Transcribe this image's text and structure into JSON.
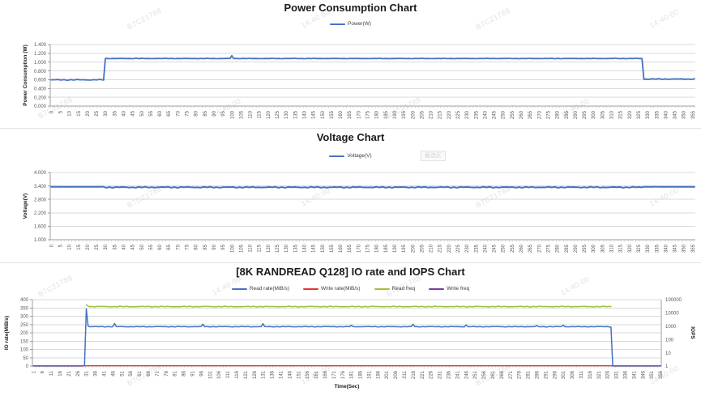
{
  "watermark": {
    "texts": [
      "14:40:00",
      "B7C21788"
    ]
  },
  "selection_box": {
    "label": "截选区"
  },
  "chart_data": [
    {
      "type": "line",
      "title": "Power Consumption Chart",
      "legend": [
        {
          "label": "Power(W)",
          "color": "#4472C4"
        }
      ],
      "y_axis": {
        "title": "Power Consumption (W)",
        "min": 0,
        "max": 1.4,
        "ticks": [
          "0.000",
          "0.200",
          "0.400",
          "0.600",
          "0.800",
          "1.000",
          "1.200",
          "1.400"
        ]
      },
      "x_axis": {
        "ticks": [
          0,
          5,
          10,
          15,
          20,
          25,
          30,
          35,
          40,
          45,
          50,
          55,
          60,
          65,
          70,
          75,
          80,
          85,
          90,
          95,
          100,
          105,
          110,
          115,
          120,
          125,
          130,
          135,
          140,
          145,
          150,
          155,
          160,
          165,
          170,
          175,
          180,
          185,
          190,
          195,
          200,
          205,
          210,
          215,
          220,
          225,
          230,
          235,
          240,
          245,
          250,
          255,
          260,
          265,
          270,
          275,
          280,
          285,
          290,
          295,
          300,
          305,
          310,
          315,
          320,
          325,
          330,
          335,
          340,
          345,
          350,
          355
        ]
      },
      "grid": true,
      "series": [
        {
          "name": "Power(W)",
          "color": "#4472C4",
          "width": 1.8,
          "axis": "left",
          "segments": [
            {
              "from": 0,
              "to": 29,
              "v": 0.597,
              "j": 0.012
            },
            {
              "from": 30,
              "to": 327,
              "v": 1.082,
              "j": 0.005
            },
            {
              "from": 328,
              "to": 356,
              "v": 0.615,
              "j": 0.012
            }
          ],
          "spikes": {
            "47": 1.09,
            "100": 1.147,
            "135": 1.088,
            "312": 1.093
          }
        }
      ]
    },
    {
      "type": "line",
      "title": "Voltage Chart",
      "legend": [
        {
          "label": "Voltage(V)",
          "color": "#4472C4"
        }
      ],
      "y_axis": {
        "title": "Voltage(V)",
        "min": 1,
        "max": 4,
        "ticks": [
          "1.000",
          "1.600",
          "2.200",
          "2.800",
          "3.400",
          "4.000"
        ]
      },
      "x_axis": {
        "ticks": [
          0,
          5,
          10,
          15,
          20,
          25,
          30,
          35,
          40,
          45,
          50,
          55,
          60,
          65,
          70,
          75,
          80,
          85,
          90,
          95,
          100,
          105,
          110,
          115,
          120,
          125,
          130,
          135,
          140,
          145,
          150,
          155,
          160,
          165,
          170,
          175,
          180,
          185,
          190,
          195,
          200,
          205,
          210,
          215,
          220,
          225,
          230,
          235,
          240,
          245,
          250,
          255,
          260,
          265,
          270,
          275,
          280,
          285,
          290,
          295,
          300,
          305,
          310,
          315,
          320,
          325,
          330,
          335,
          340,
          345,
          350,
          355
        ]
      },
      "grid": true,
      "series": [
        {
          "name": "Voltage(V)",
          "color": "#4472C4",
          "width": 2,
          "axis": "left",
          "segments": [
            {
              "from": 0,
              "to": 29,
              "v": 3.36,
              "j": 0.005
            },
            {
              "from": 30,
              "to": 327,
              "v": 3.35,
              "j": 0.028,
              "b": -0.35
            },
            {
              "from": 328,
              "to": 356,
              "v": 3.36,
              "j": 0.005
            }
          ],
          "spikes": {}
        }
      ]
    },
    {
      "type": "line",
      "title": "[8K RANDREAD Q128] IO rate and IOPS Chart",
      "legend": [
        {
          "label": "Read rate(MiB/s)",
          "color": "#4472C4"
        },
        {
          "label": "Write rate(MiB/s)",
          "color": "#E0382F"
        },
        {
          "label": "Read freq",
          "color": "#9DC13C"
        },
        {
          "label": "Write freq",
          "color": "#7A3DA8"
        }
      ],
      "y_axis": {
        "title": "IO rate(MiB/s)",
        "min": 0,
        "max": 400,
        "ticks": [
          "0",
          "50",
          "100",
          "150",
          "200",
          "250",
          "300",
          "350",
          "400"
        ]
      },
      "y2_axis": {
        "title": "IOPS",
        "scale": "log",
        "min": 1,
        "max": 100000,
        "ticks": [
          "1",
          "10",
          "100",
          "1000",
          "10000",
          "100000"
        ]
      },
      "x_axis": {
        "title": "Time(Sec)",
        "ticks": [
          1,
          6,
          11,
          16,
          21,
          26,
          31,
          36,
          41,
          46,
          51,
          56,
          61,
          66,
          71,
          76,
          81,
          86,
          91,
          96,
          101,
          106,
          111,
          116,
          121,
          126,
          131,
          136,
          141,
          146,
          151,
          156,
          161,
          166,
          171,
          176,
          181,
          186,
          191,
          196,
          201,
          206,
          211,
          216,
          221,
          226,
          231,
          236,
          241,
          246,
          251,
          256,
          261,
          266,
          271,
          276,
          281,
          286,
          291,
          296,
          301,
          306,
          311,
          316,
          321,
          326,
          331,
          336,
          341,
          346,
          351,
          356
        ]
      },
      "grid": true,
      "series": [
        {
          "name": "Read freq",
          "color": "#9DC13C",
          "width": 1.5,
          "axis": "right",
          "segments": [
            {
              "from": 31,
              "to": 328,
              "v": 30000,
              "j": 2500
            }
          ],
          "spikes": {
            "31": 41000,
            "32": 33000
          }
        },
        {
          "name": "Read rate(MiB/s)",
          "color": "#4472C4",
          "width": 1.5,
          "axis": "left",
          "segments": [
            {
              "from": 1,
              "to": 29,
              "v": 0,
              "j": 0
            },
            {
              "from": 31,
              "to": 328,
              "v": 237,
              "j": 2
            },
            {
              "from": 329,
              "to": 356,
              "v": 0,
              "j": 0
            }
          ],
          "spikes": {
            "30": 5,
            "31": 345,
            "32": 240,
            "47": 256,
            "97": 252,
            "131": 255,
            "181": 246,
            "216": 252,
            "246": 248,
            "286": 244,
            "301": 247
          }
        },
        {
          "name": "Write rate(MiB/s)",
          "color": "#E0382F",
          "width": 1.3,
          "axis": "left",
          "segments": [
            {
              "from": 1,
              "to": 356,
              "v": 2,
              "j": 0
            }
          ],
          "spikes": {}
        },
        {
          "name": "Write freq",
          "color": "#7A3DA8",
          "width": 1.3,
          "axis": "right",
          "segments": [],
          "spikes": {}
        }
      ]
    }
  ]
}
